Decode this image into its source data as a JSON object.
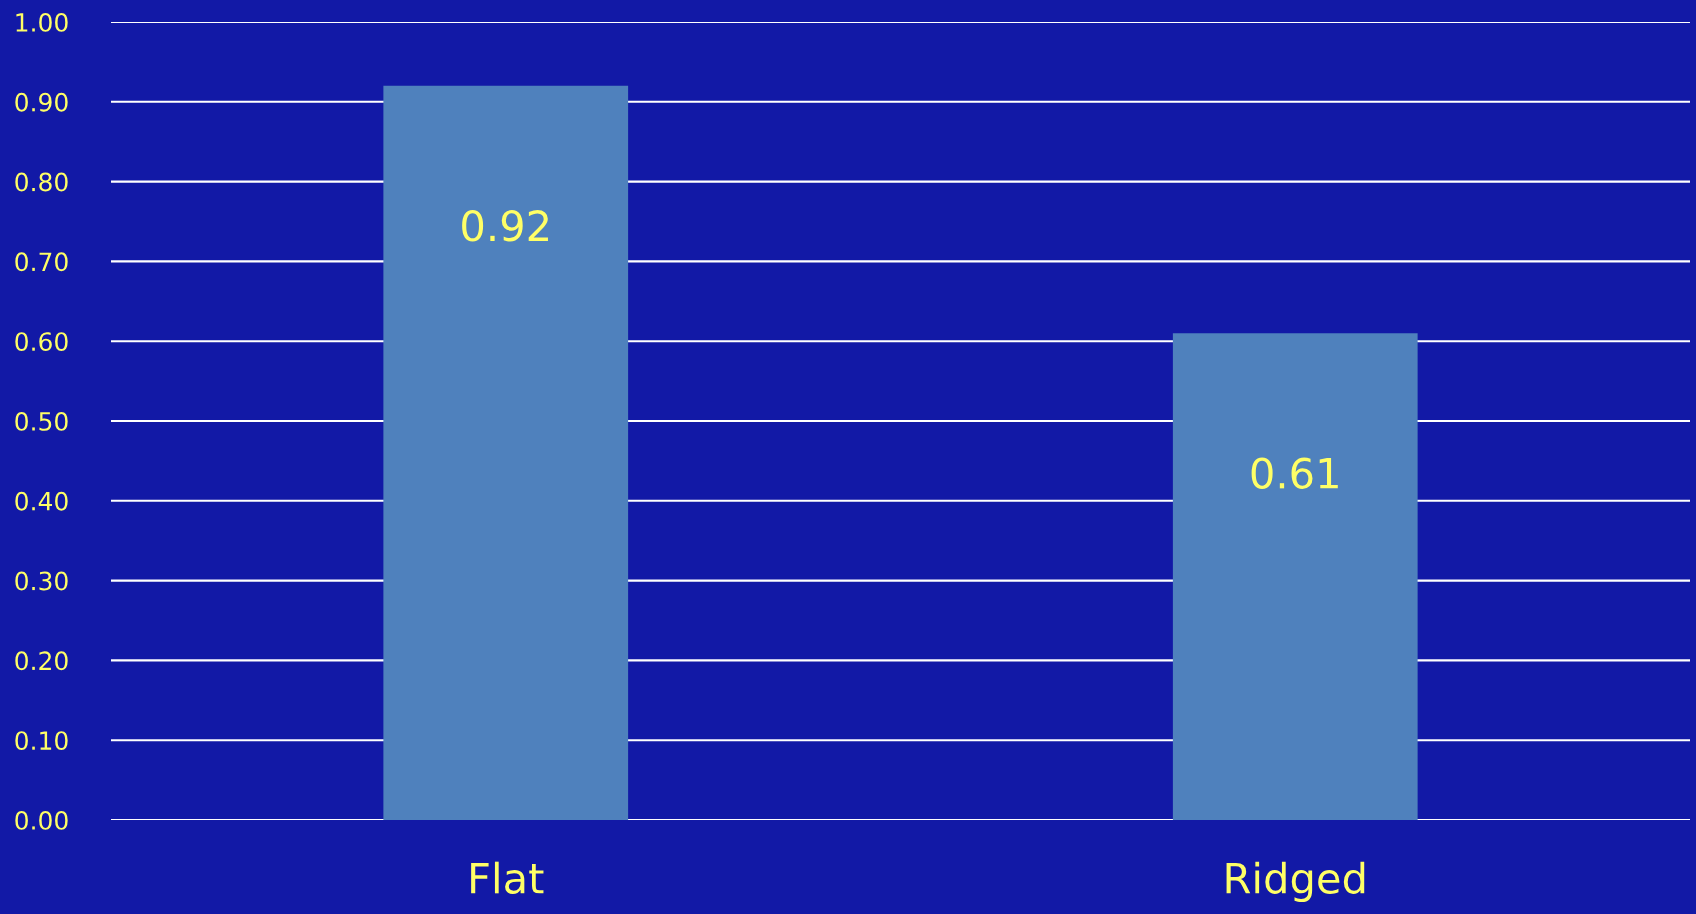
{
  "chart_data": {
    "type": "bar",
    "categories": [
      "Flat",
      "Ridged"
    ],
    "values": [
      0.92,
      0.61
    ],
    "color": "#4f81bd",
    "data_labels": true,
    "ylim": [
      0,
      1
    ],
    "yticks": [
      {
        "value": 0,
        "label": "0.00"
      },
      {
        "value": 0.1,
        "label": "0.10"
      },
      {
        "value": 0.2,
        "label": "0.20"
      },
      {
        "value": 0.3,
        "label": "0.30"
      },
      {
        "value": 0.4,
        "label": "0.40"
      },
      {
        "value": 0.5,
        "label": "0.50"
      },
      {
        "value": 0.6,
        "label": "0.60"
      },
      {
        "value": 0.7,
        "label": "0.70"
      },
      {
        "value": 0.8,
        "label": "0.80"
      },
      {
        "value": 0.9,
        "label": "0.90"
      },
      {
        "value": 1,
        "label": "1.00"
      }
    ],
    "grid": "y"
  }
}
